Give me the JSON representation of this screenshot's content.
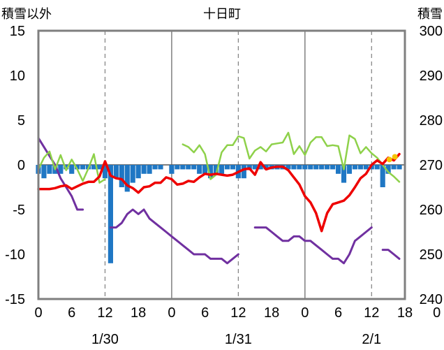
{
  "chart_data": {
    "type": "line",
    "title": "十日町",
    "left_axis_label": "積雪以外",
    "right_axis_label": "積雪",
    "ylim_left": [
      -15,
      15
    ],
    "ylim_right": [
      240,
      300
    ],
    "yticks_left": [
      "15",
      "10",
      "5",
      "0",
      "-5",
      "-10",
      "-15"
    ],
    "yticks_right": [
      "300",
      "290",
      "280",
      "270",
      "260",
      "250",
      "240"
    ],
    "xlim_hours": [
      0,
      66
    ],
    "xtick_labels": [
      "0",
      "6",
      "12",
      "18",
      "0",
      "6",
      "12",
      "18",
      "0",
      "6",
      "12",
      "18",
      "0"
    ],
    "date_labels": [
      "1/30",
      "1/31",
      "2/1"
    ],
    "grid": "dashed vertical at 12h, solid vertical at day boundaries",
    "colors": {
      "precipitation": "#1f77c4",
      "temperature": "#ee0000",
      "humidity_like": "#8ed14a",
      "snow_depth": "#7030a0",
      "highlight": "#f5c400",
      "frame": "#7f7f7f",
      "grid": "#7f7f7f"
    },
    "series": [
      {
        "key": "precipitation",
        "type": "bar",
        "axis": "left",
        "x": [
          0,
          1,
          2,
          3,
          4,
          5,
          6,
          7,
          8,
          9,
          10,
          11,
          12,
          13,
          14,
          15,
          16,
          17,
          18,
          19,
          20,
          21,
          22,
          24,
          25,
          26,
          27,
          28,
          29,
          30,
          31,
          32,
          33,
          34,
          35,
          36,
          37,
          38,
          39,
          40,
          41,
          42,
          43,
          44,
          45,
          46,
          47,
          48,
          49,
          50,
          51,
          52,
          53,
          54,
          55,
          56,
          57,
          58,
          59,
          60,
          61,
          62,
          63,
          64,
          65
        ],
        "values": [
          -1,
          -1.5,
          -1,
          -1,
          -1,
          -0.5,
          -1,
          -0.5,
          -0.5,
          -0.5,
          -0.5,
          -0.5,
          -1.5,
          -11,
          -1.5,
          -2.5,
          -3,
          -2,
          -1.5,
          -1,
          -1,
          -0.5,
          -0.5,
          -1,
          -0.5,
          -0.5,
          -0.5,
          -0.5,
          -1,
          -1,
          -1.5,
          -1,
          -1,
          -0.5,
          -0.5,
          -1.5,
          -1.5,
          -0.5,
          -0.5,
          -0.5,
          -0.5,
          -0.5,
          -0.5,
          -0.5,
          -0.5,
          -0.5,
          -0.5,
          -0.5,
          -0.5,
          -0.5,
          -0.5,
          -0.5,
          -0.5,
          -1,
          -2,
          -1,
          -0.5,
          -0.5,
          -0.5,
          -0.5,
          -0.5,
          -2.5,
          -1,
          -0.5,
          -0.5
        ]
      },
      {
        "key": "temperature",
        "type": "line",
        "axis": "left",
        "segments": [
          {
            "x": [
              0,
              1,
              2,
              3,
              4,
              5,
              6,
              7,
              8,
              9,
              10,
              11,
              12,
              13,
              14,
              15,
              16,
              17,
              18,
              19,
              20,
              21,
              22,
              23,
              24,
              25,
              26,
              27,
              28,
              29,
              30,
              31,
              32,
              33,
              34,
              35,
              36,
              37,
              38,
              39,
              40,
              41,
              42,
              43,
              44,
              45,
              46,
              47,
              48,
              49,
              50,
              51,
              52,
              53,
              54,
              55,
              56,
              57,
              58,
              59,
              60,
              61,
              62,
              63,
              64,
              65
            ],
            "y": [
              -2.7,
              -2.7,
              -2.7,
              -2.6,
              -2.4,
              -2.3,
              -2.7,
              -2.4,
              -2.1,
              -1.9,
              -1.9,
              -1.3,
              0.4,
              -1.2,
              -1.5,
              -1.6,
              -2.3,
              -2.6,
              -3.1,
              -2.5,
              -2.4,
              -2.0,
              -2.0,
              -1.4,
              -1.6,
              -2.2,
              -2.1,
              -1.8,
              -1.9,
              -1.4,
              -1.0,
              -1.1,
              -1.0,
              -1.1,
              -1.2,
              -1.1,
              -0.8,
              -0.5,
              -0.4,
              -1.1,
              0.3,
              -0.5,
              -0.3,
              -0.2,
              -0.2,
              -0.6,
              -1.4,
              -2.2,
              -3.5,
              -4.2,
              -5.4,
              -7.4,
              -5.4,
              -4.4,
              -4.2,
              -4.0,
              -3.4,
              -2.5,
              -1.5,
              -1.0,
              0.0,
              0.5,
              0.1,
              0.8,
              0.5,
              1.2
            ]
          }
        ]
      },
      {
        "key": "humidity_like",
        "type": "line",
        "axis": "left",
        "segments": [
          {
            "x": [
              0,
              1,
              2,
              3,
              4,
              5,
              6,
              7,
              8,
              9,
              10,
              11,
              12
            ],
            "y": [
              -0.5,
              0.8,
              1.5,
              -0.5,
              1.1,
              -0.6,
              0.6,
              -0.5,
              -1.8,
              -0.4,
              1.2,
              -2.0,
              -1.6
            ]
          },
          {
            "x": [
              26,
              27,
              28,
              29,
              30,
              31,
              32,
              33,
              34,
              35,
              36,
              37,
              38,
              39,
              40,
              41,
              42,
              43,
              44,
              45,
              46,
              47,
              48,
              49,
              50,
              51,
              52,
              53,
              54,
              55,
              56,
              57,
              58,
              59,
              60,
              61,
              62,
              63,
              64,
              65
            ],
            "y": [
              2.3,
              2.0,
              1.4,
              2.2,
              1.2,
              -1.6,
              -1.1,
              1.4,
              2.2,
              2.2,
              3.2,
              3.0,
              0.7,
              1.6,
              2.0,
              1.5,
              2.3,
              2.4,
              2.5,
              3.6,
              1.2,
              2.1,
              1.1,
              2.5,
              3.1,
              3.1,
              2.1,
              2.2,
              2.1,
              -0.5,
              3.3,
              2.9,
              1.3,
              2.0,
              1.3,
              0.8,
              0.0,
              -0.8,
              -1.3,
              -1.9
            ]
          }
        ]
      },
      {
        "key": "snow_depth",
        "type": "line",
        "axis": "right",
        "segments": [
          {
            "x": [
              0,
              1,
              2,
              3,
              4,
              5,
              6,
              7,
              8
            ],
            "y": [
              276,
              274,
              272,
              270,
              267,
              265,
              263,
              260,
              260
            ]
          },
          {
            "x": [
              13,
              14,
              15,
              16,
              17,
              18,
              19,
              20,
              21,
              22,
              23,
              24,
              25,
              26,
              27,
              28,
              29,
              30,
              31,
              32,
              33,
              34,
              35,
              36
            ],
            "y": [
              256,
              256,
              257,
              259,
              260,
              259,
              260,
              258,
              257,
              256,
              255,
              254,
              253,
              252,
              251,
              250,
              250,
              250,
              249,
              249,
              249,
              248,
              249,
              250
            ]
          },
          {
            "x": [
              39,
              40,
              41,
              42,
              43,
              44,
              45,
              46,
              47,
              48,
              49,
              50,
              51,
              52,
              53,
              54,
              55,
              56,
              57,
              58,
              59,
              60
            ],
            "y": [
              256,
              256,
              256,
              255,
              254,
              253,
              253,
              254,
              254,
              253,
              253,
              252,
              251,
              250,
              249,
              249,
              248,
              250,
              253,
              254,
              255,
              256
            ]
          },
          {
            "x": [
              62,
              63,
              64,
              65
            ],
            "y": [
              251,
              251,
              250,
              249
            ]
          }
        ]
      }
    ],
    "highlight_markers": {
      "x": [
        63.2,
        64.2
      ],
      "y": [
        0.6,
        0.9
      ]
    }
  }
}
